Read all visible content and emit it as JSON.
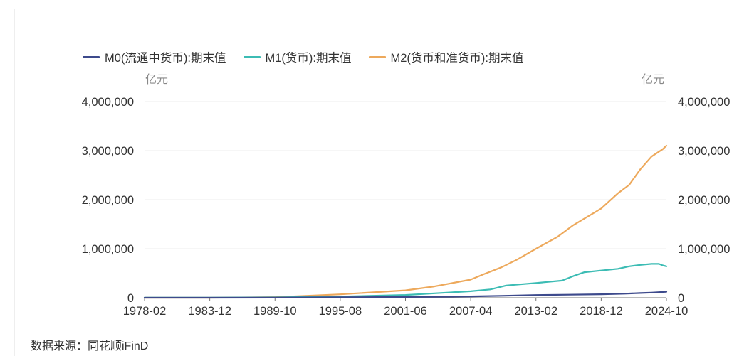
{
  "unit_left": "亿元",
  "unit_right": "亿元",
  "source": "数据来源：同花顺iFinD",
  "legend": [
    {
      "label": "M0(流通中货币):期末值",
      "color": "#3d4a8c"
    },
    {
      "label": "M1(货币):期末值",
      "color": "#3cbcb4"
    },
    {
      "label": "M2(货币和准货币):期末值",
      "color": "#eda95c"
    }
  ],
  "chart_data": {
    "type": "line",
    "x_axis_type": "date",
    "x_ticks": [
      "1978-02",
      "1983-12",
      "1989-10",
      "1995-08",
      "2001-06",
      "2007-04",
      "2013-02",
      "2018-12",
      "2024-10"
    ],
    "y_ticks": [
      "0",
      "1,000,000",
      "2,000,000",
      "3,000,000",
      "4,000,000"
    ],
    "ylim": [
      0,
      4000000
    ],
    "y_right_ticks": [
      "0",
      "1,000,000",
      "2,000,000",
      "3,000,000",
      "4,000,000"
    ],
    "grid": true,
    "legend_position": "top-left",
    "series": [
      {
        "name": "M0(流通中货币):期末值",
        "color": "#3d4a8c",
        "x": [
          "1978-02",
          "1983-12",
          "1989-10",
          "1995-08",
          "2001-06",
          "2004-01",
          "2007-04",
          "2010-01",
          "2013-02",
          "2016-01",
          "2018-12",
          "2021-01",
          "2022-06",
          "2023-06",
          "2024-10"
        ],
        "y": [
          200,
          500,
          2000,
          8000,
          16000,
          20000,
          27000,
          39000,
          55000,
          63000,
          71000,
          83000,
          96000,
          105000,
          122000
        ]
      },
      {
        "name": "M1(货币):期末值",
        "color": "#3cbcb4",
        "x": [
          "1978-02",
          "1983-12",
          "1989-10",
          "1995-08",
          "2001-06",
          "2004-01",
          "2007-04",
          "2009-01",
          "2010-06",
          "2013-02",
          "2015-06",
          "2016-06",
          "2017-06",
          "2018-12",
          "2020-06",
          "2021-06",
          "2022-06",
          "2023-06",
          "2024-02",
          "2024-06",
          "2024-10"
        ],
        "y": [
          900,
          2500,
          7000,
          23000,
          56000,
          90000,
          132000,
          170000,
          250000,
          300000,
          350000,
          440000,
          520000,
          555000,
          590000,
          640000,
          670000,
          690000,
          690000,
          660000,
          640000
        ]
      },
      {
        "name": "M2(货币和准货币):期末值",
        "color": "#eda95c",
        "x": [
          "1978-02",
          "1983-12",
          "1989-10",
          "1995-08",
          "2001-06",
          "2004-01",
          "2007-04",
          "2008-06",
          "2010-01",
          "2011-06",
          "2013-02",
          "2015-01",
          "2016-06",
          "2018-12",
          "2020-06",
          "2021-06",
          "2022-06",
          "2023-06",
          "2024-06",
          "2024-10"
        ],
        "y": [
          0,
          0,
          12000,
          70000,
          150000,
          230000,
          370000,
          480000,
          620000,
          780000,
          1000000,
          1240000,
          1480000,
          1820000,
          2130000,
          2300000,
          2620000,
          2880000,
          3030000,
          3100000
        ]
      }
    ]
  }
}
